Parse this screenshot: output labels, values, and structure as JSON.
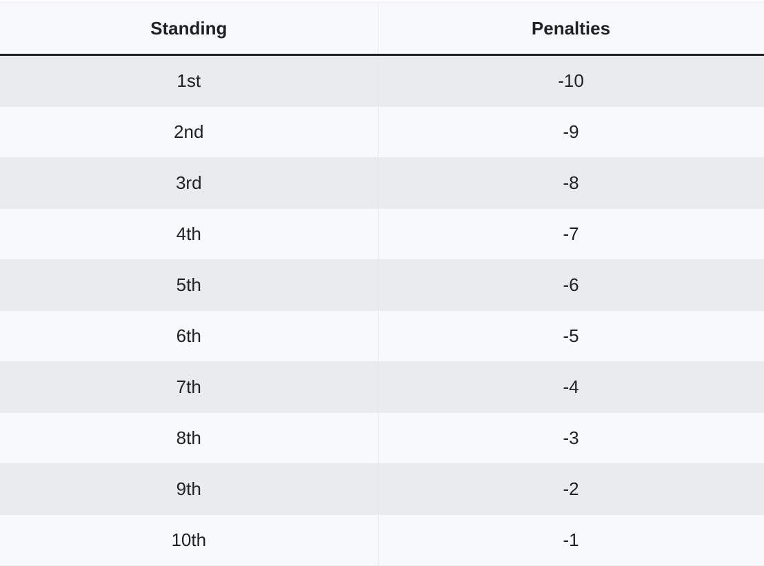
{
  "table": {
    "headers": {
      "standing": "Standing",
      "penalties": "Penalties"
    },
    "rows": [
      {
        "standing": "1st",
        "penalties": "-10"
      },
      {
        "standing": "2nd",
        "penalties": "-9"
      },
      {
        "standing": "3rd",
        "penalties": "-8"
      },
      {
        "standing": "4th",
        "penalties": "-7"
      },
      {
        "standing": "5th",
        "penalties": "-6"
      },
      {
        "standing": "6th",
        "penalties": "-5"
      },
      {
        "standing": "7th",
        "penalties": "-4"
      },
      {
        "standing": "8th",
        "penalties": "-3"
      },
      {
        "standing": "9th",
        "penalties": "-2"
      },
      {
        "standing": "10th",
        "penalties": "-1"
      }
    ]
  },
  "colors": {
    "header_bg": "#f8f9fa",
    "row_odd_bg": "#eaebed",
    "row_even_bg": "#f8f9fa",
    "text": "#202122",
    "header_rule": "#202122"
  }
}
